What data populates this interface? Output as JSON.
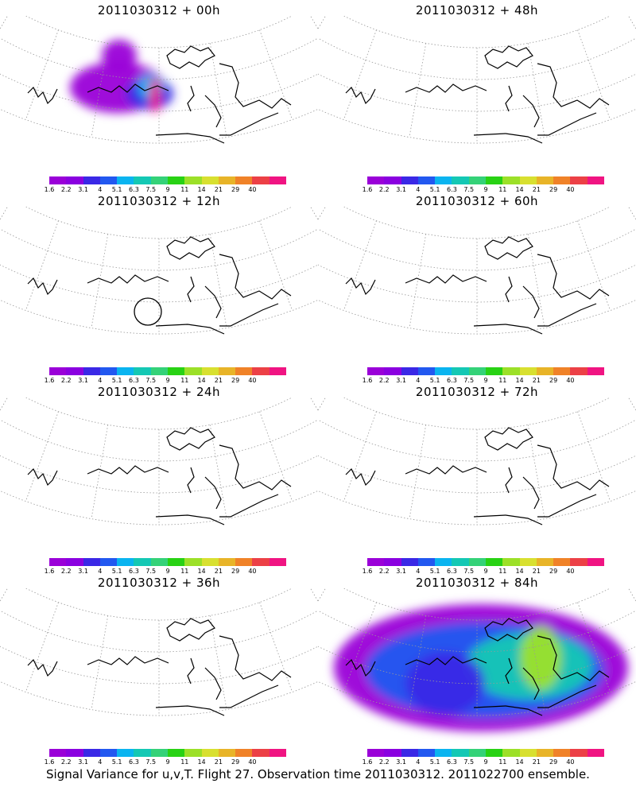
{
  "panels": [
    {
      "title": "2011030312 + 00h",
      "stage": 0
    },
    {
      "title": "2011030312 + 48h",
      "stage": 4
    },
    {
      "title": "2011030312 + 12h",
      "stage": 1
    },
    {
      "title": "2011030312 + 60h",
      "stage": 5
    },
    {
      "title": "2011030312 + 24h",
      "stage": 2
    },
    {
      "title": "2011030312 + 72h",
      "stage": 6
    },
    {
      "title": "2011030312 + 36h",
      "stage": 3
    },
    {
      "title": "2011030312 + 84h",
      "stage": 7
    }
  ],
  "colorbar": {
    "ticks": [
      "1.6",
      "2.2",
      "3.1",
      "4",
      "5.1",
      "6.3",
      "7.5",
      "9",
      "11",
      "14",
      "21",
      "29",
      "40"
    ],
    "colors": [
      "#9a00d8",
      "#8a00e0",
      "#3a28e6",
      "#2258f0",
      "#0ab4f0",
      "#14c8b4",
      "#34d278",
      "#28d214",
      "#9ce028",
      "#d8e030",
      "#e8b428",
      "#f08228",
      "#ec4046",
      "#f01482"
    ]
  },
  "footer": "Signal Variance for u,v,T. Flight 27. Observation time 2011030312. 2011022700 ensemble."
}
